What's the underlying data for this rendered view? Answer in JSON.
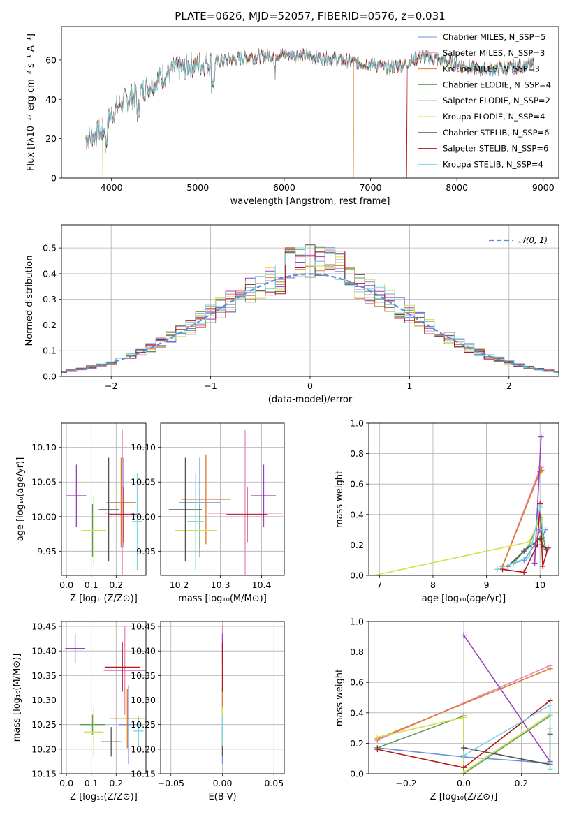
{
  "title": "PLATE=0626, MJD=52057, FIBERID=0576, z=0.031",
  "colors": [
    "#6a8fdc",
    "#e886c0",
    "#db7d2a",
    "#5e9c5e",
    "#9a3fbf",
    "#d4df4a",
    "#545454",
    "#b4181c",
    "#79d8e2"
  ],
  "chart_data": [
    {
      "type": "line",
      "id": "spectrum",
      "xlabel": "wavelength [Angstrom, rest frame]",
      "ylabel": "Flux [fλ10⁻¹⁷ erg cm⁻² s⁻¹ A⁻¹]",
      "xlim": [
        3420,
        9180
      ],
      "ylim": [
        0,
        77
      ],
      "xticks": [
        4000,
        5000,
        6000,
        7000,
        8000,
        9000
      ],
      "yticks": [
        0,
        20,
        40,
        60
      ],
      "continuum": {
        "x": [
          3700,
          3900,
          4000,
          4100,
          4300,
          4500,
          4700,
          5000,
          5200,
          5500,
          6000,
          6300,
          6500,
          6800,
          7000,
          7200,
          7400,
          7600,
          7800,
          8000,
          8300,
          8600,
          8900
        ],
        "y": [
          20,
          24,
          32,
          38,
          43,
          49,
          55,
          58,
          59,
          61,
          63,
          62,
          61,
          59,
          58,
          56,
          58,
          62,
          60,
          58,
          55,
          56,
          58
        ]
      },
      "series": [
        {
          "name": "Chabrier MILES, N_SSP=5"
        },
        {
          "name": "Salpeter MILES, N_SSP=3"
        },
        {
          "name": "Kroupa MILES, N_SSP=3"
        },
        {
          "name": "Chabrier ELODIE, N_SSP=4"
        },
        {
          "name": "Salpeter ELODIE, N_SSP=2"
        },
        {
          "name": "Kroupa ELODIE, N_SSP=4"
        },
        {
          "name": "Chabrier STELIB, N_SSP=6"
        },
        {
          "name": "Salpeter STELIB, N_SSP=6"
        },
        {
          "name": "Kroupa STELIB, N_SSP=4"
        }
      ]
    },
    {
      "type": "histogram",
      "id": "residuals",
      "xlabel": "(data-model)/error",
      "ylabel": "Normed distribution",
      "xlim": [
        -2.5,
        2.5
      ],
      "ylim": [
        0,
        0.59
      ],
      "xticks": [
        -2,
        -1,
        0,
        1,
        2
      ],
      "yticks": [
        0.0,
        0.1,
        0.2,
        0.3,
        0.4,
        0.5
      ],
      "legend": "𝒩(0, 1)",
      "reference": "normal(0,1)"
    },
    {
      "type": "errorbar",
      "id": "z-age",
      "xlabel": "Z [log₁₀(Z/Z⊙)]",
      "ylabel": "age  [log₁₀(age/yr)]",
      "xlim": [
        -0.02,
        0.32
      ],
      "ylim": [
        9.915,
        10.135
      ],
      "xticks": [
        0.0,
        0.1,
        0.2
      ],
      "yticks": [
        9.95,
        10.0,
        10.05,
        10.1
      ],
      "points": [
        {
          "x": 0.23,
          "xe": 0.05,
          "y": 10.02,
          "ye": 0.065
        },
        {
          "x": 0.225,
          "xe": 0.07,
          "y": 10.005,
          "ye": 0.12
        },
        {
          "x": 0.22,
          "xe": 0.06,
          "y": 10.02,
          "ye": 0.065
        },
        {
          "x": 0.105,
          "xe": 0.035,
          "y": 9.98,
          "ye": 0.038
        },
        {
          "x": 0.04,
          "xe": 0.04,
          "y": 10.03,
          "ye": 0.045
        },
        {
          "x": 0.11,
          "xe": 0.05,
          "y": 9.98,
          "ye": 0.05
        },
        {
          "x": 0.17,
          "xe": 0.04,
          "y": 10.01,
          "ye": 0.075
        },
        {
          "x": 0.23,
          "xe": 0.06,
          "y": 10.003,
          "ye": 0.04
        },
        {
          "x": 0.285,
          "xe": 0.02,
          "y": 9.993,
          "ye": 0.07
        }
      ]
    },
    {
      "type": "errorbar",
      "id": "mass-age",
      "xlabel": "mass [log₁₀(M/M⊙)]",
      "xlim": [
        10.155,
        10.455
      ],
      "ylim": [
        9.915,
        10.135
      ],
      "xticks": [
        10.2,
        10.3,
        10.4
      ],
      "yticks": [
        9.95,
        10.0,
        10.05,
        10.1
      ],
      "points": [
        {
          "x": 10.25,
          "xe": 0.05,
          "y": 10.02,
          "ye": 0.065
        },
        {
          "x": 10.36,
          "xe": 0.09,
          "y": 10.005,
          "ye": 0.12
        },
        {
          "x": 10.265,
          "xe": 0.06,
          "y": 10.025,
          "ye": 0.065
        },
        {
          "x": 10.25,
          "xe": 0.04,
          "y": 9.98,
          "ye": 0.038
        },
        {
          "x": 10.405,
          "xe": 0.03,
          "y": 10.03,
          "ye": 0.045
        },
        {
          "x": 10.24,
          "xe": 0.05,
          "y": 9.98,
          "ye": 0.05
        },
        {
          "x": 10.215,
          "xe": 0.04,
          "y": 10.01,
          "ye": 0.075
        },
        {
          "x": 10.365,
          "xe": 0.05,
          "y": 10.003,
          "ye": 0.04
        },
        {
          "x": 10.24,
          "xe": 0.02,
          "y": 9.993,
          "ye": 0.07
        }
      ]
    },
    {
      "type": "line",
      "id": "age-weight",
      "xlabel": "age  [log₁₀(age/yr)]",
      "ylabel": "mass weight",
      "xlim": [
        6.8,
        10.35
      ],
      "ylim": [
        0,
        1.0
      ],
      "xticks": [
        7,
        8,
        9,
        10
      ],
      "yticks": [
        0.0,
        0.2,
        0.4,
        0.6,
        0.8,
        1.0
      ],
      "series": [
        {
          "x": [
            9.5,
            9.7,
            9.9,
            10.0,
            10.05,
            10.1
          ],
          "y": [
            0.08,
            0.1,
            0.2,
            0.3,
            0.25,
            0.3
          ]
        },
        {
          "x": [
            9.3,
            10.0,
            10.02
          ],
          "y": [
            0.06,
            0.7,
            0.71
          ]
        },
        {
          "x": [
            9.3,
            10.0,
            10.03
          ],
          "y": [
            0.06,
            0.68,
            0.69
          ]
        },
        {
          "x": [
            9.5,
            9.8,
            10.0,
            10.1
          ],
          "y": [
            0.08,
            0.2,
            0.38,
            0.18
          ]
        },
        {
          "x": [
            9.9,
            10.02
          ],
          "y": [
            0.08,
            0.91
          ]
        },
        {
          "x": [
            6.9,
            9.8,
            10.0,
            10.05
          ],
          "y": [
            0.0,
            0.22,
            0.37,
            0.2
          ]
        },
        {
          "x": [
            9.4,
            9.7,
            10.0,
            10.05,
            10.12
          ],
          "y": [
            0.06,
            0.16,
            0.24,
            0.2,
            0.17
          ]
        },
        {
          "x": [
            9.3,
            9.7,
            9.95,
            10.0,
            10.05,
            10.15
          ],
          "y": [
            0.04,
            0.02,
            0.2,
            0.47,
            0.06,
            0.18
          ]
        },
        {
          "x": [
            9.2,
            9.8,
            10.0,
            10.05
          ],
          "y": [
            0.04,
            0.12,
            0.45,
            0.3
          ]
        }
      ]
    },
    {
      "type": "errorbar",
      "id": "z-mass",
      "xlabel": "Z [log₁₀(Z/Z⊙)]",
      "ylabel": "mass [log₁₀(M/M⊙)]",
      "xlim": [
        -0.02,
        0.32
      ],
      "ylim": [
        10.15,
        10.46
      ],
      "xticks": [
        0.0,
        0.1,
        0.2
      ],
      "yticks": [
        10.15,
        10.2,
        10.25,
        10.3,
        10.35,
        10.4,
        10.45
      ],
      "points": [
        {
          "x": 0.25,
          "xe": 0.04,
          "y": 10.25,
          "ye": 0.08
        },
        {
          "x": 0.235,
          "xe": 0.085,
          "y": 10.36,
          "ye": 0.09
        },
        {
          "x": 0.245,
          "xe": 0.07,
          "y": 10.262,
          "ye": 0.06
        },
        {
          "x": 0.105,
          "xe": 0.05,
          "y": 10.25,
          "ye": 0.02
        },
        {
          "x": 0.035,
          "xe": 0.04,
          "y": 10.405,
          "ye": 0.03
        },
        {
          "x": 0.11,
          "xe": 0.04,
          "y": 10.235,
          "ye": 0.05
        },
        {
          "x": 0.18,
          "xe": 0.04,
          "y": 10.215,
          "ye": 0.03
        },
        {
          "x": 0.225,
          "xe": 0.07,
          "y": 10.367,
          "ye": 0.05
        },
        {
          "x": 0.29,
          "xe": 0.02,
          "y": 10.237,
          "ye": 0.03
        }
      ]
    },
    {
      "type": "errorbar",
      "id": "ebv-mass",
      "xlabel": "E(B-V)",
      "xlim": [
        -0.06,
        0.06
      ],
      "ylim": [
        10.15,
        10.46
      ],
      "xticks": [
        -0.05,
        0.0,
        0.05
      ],
      "yticks": [
        10.15,
        10.2,
        10.25,
        10.3,
        10.35,
        10.4,
        10.45
      ],
      "points": [
        {
          "x": 0,
          "xe": 0,
          "y": 10.25,
          "ye": 0.08
        },
        {
          "x": 0,
          "xe": 0,
          "y": 10.36,
          "ye": 0.09
        },
        {
          "x": 0,
          "xe": 0,
          "y": 10.262,
          "ye": 0.06
        },
        {
          "x": 0,
          "xe": 0,
          "y": 10.25,
          "ye": 0.02
        },
        {
          "x": 0,
          "xe": 0,
          "y": 10.405,
          "ye": 0.03
        },
        {
          "x": 0,
          "xe": 0,
          "y": 10.235,
          "ye": 0.05
        },
        {
          "x": 0,
          "xe": 0,
          "y": 10.215,
          "ye": 0.03
        },
        {
          "x": 0,
          "xe": 0,
          "y": 10.367,
          "ye": 0.05
        },
        {
          "x": 0,
          "xe": 0,
          "y": 10.237,
          "ye": 0.03
        }
      ]
    },
    {
      "type": "line",
      "id": "z-weight",
      "xlabel": "Z [log₁₀(Z/Z⊙)]",
      "ylabel": "mass weight",
      "xlim": [
        -0.33,
        0.33
      ],
      "ylim": [
        0,
        1.0
      ],
      "xticks": [
        -0.2,
        0.0,
        0.2
      ],
      "yticks": [
        0.0,
        0.2,
        0.4,
        0.6,
        0.8,
        1.0
      ],
      "series": [
        {
          "x": [
            -0.3,
            0.0,
            0.3
          ],
          "y": [
            0.17,
            0.11,
            0.07
          ]
        },
        {
          "x": [
            -0.3,
            0.3
          ],
          "y": [
            0.22,
            0.71
          ]
        },
        {
          "x": [
            -0.3,
            0.3
          ],
          "y": [
            0.23,
            0.69
          ]
        },
        {
          "x": [
            -0.3,
            0.0,
            0.0,
            0.3
          ],
          "y": [
            0.17,
            0.38,
            0.0,
            0.38
          ]
        },
        {
          "x": [
            0.0,
            0.3
          ],
          "y": [
            0.91,
            0.08
          ]
        },
        {
          "x": [
            -0.3,
            0.0,
            0.0,
            0.3
          ],
          "y": [
            0.24,
            0.37,
            0.01,
            0.39
          ]
        },
        {
          "x": [
            0.0,
            0.3,
            0.3,
            0.3
          ],
          "y": [
            0.17,
            0.06,
            0.26,
            0.3
          ]
        },
        {
          "x": [
            -0.3,
            0.0,
            0.3
          ],
          "y": [
            0.16,
            0.04,
            0.48
          ]
        },
        {
          "x": [
            0.0,
            0.3,
            0.3
          ],
          "y": [
            0.12,
            0.45,
            0.03
          ]
        }
      ]
    }
  ]
}
